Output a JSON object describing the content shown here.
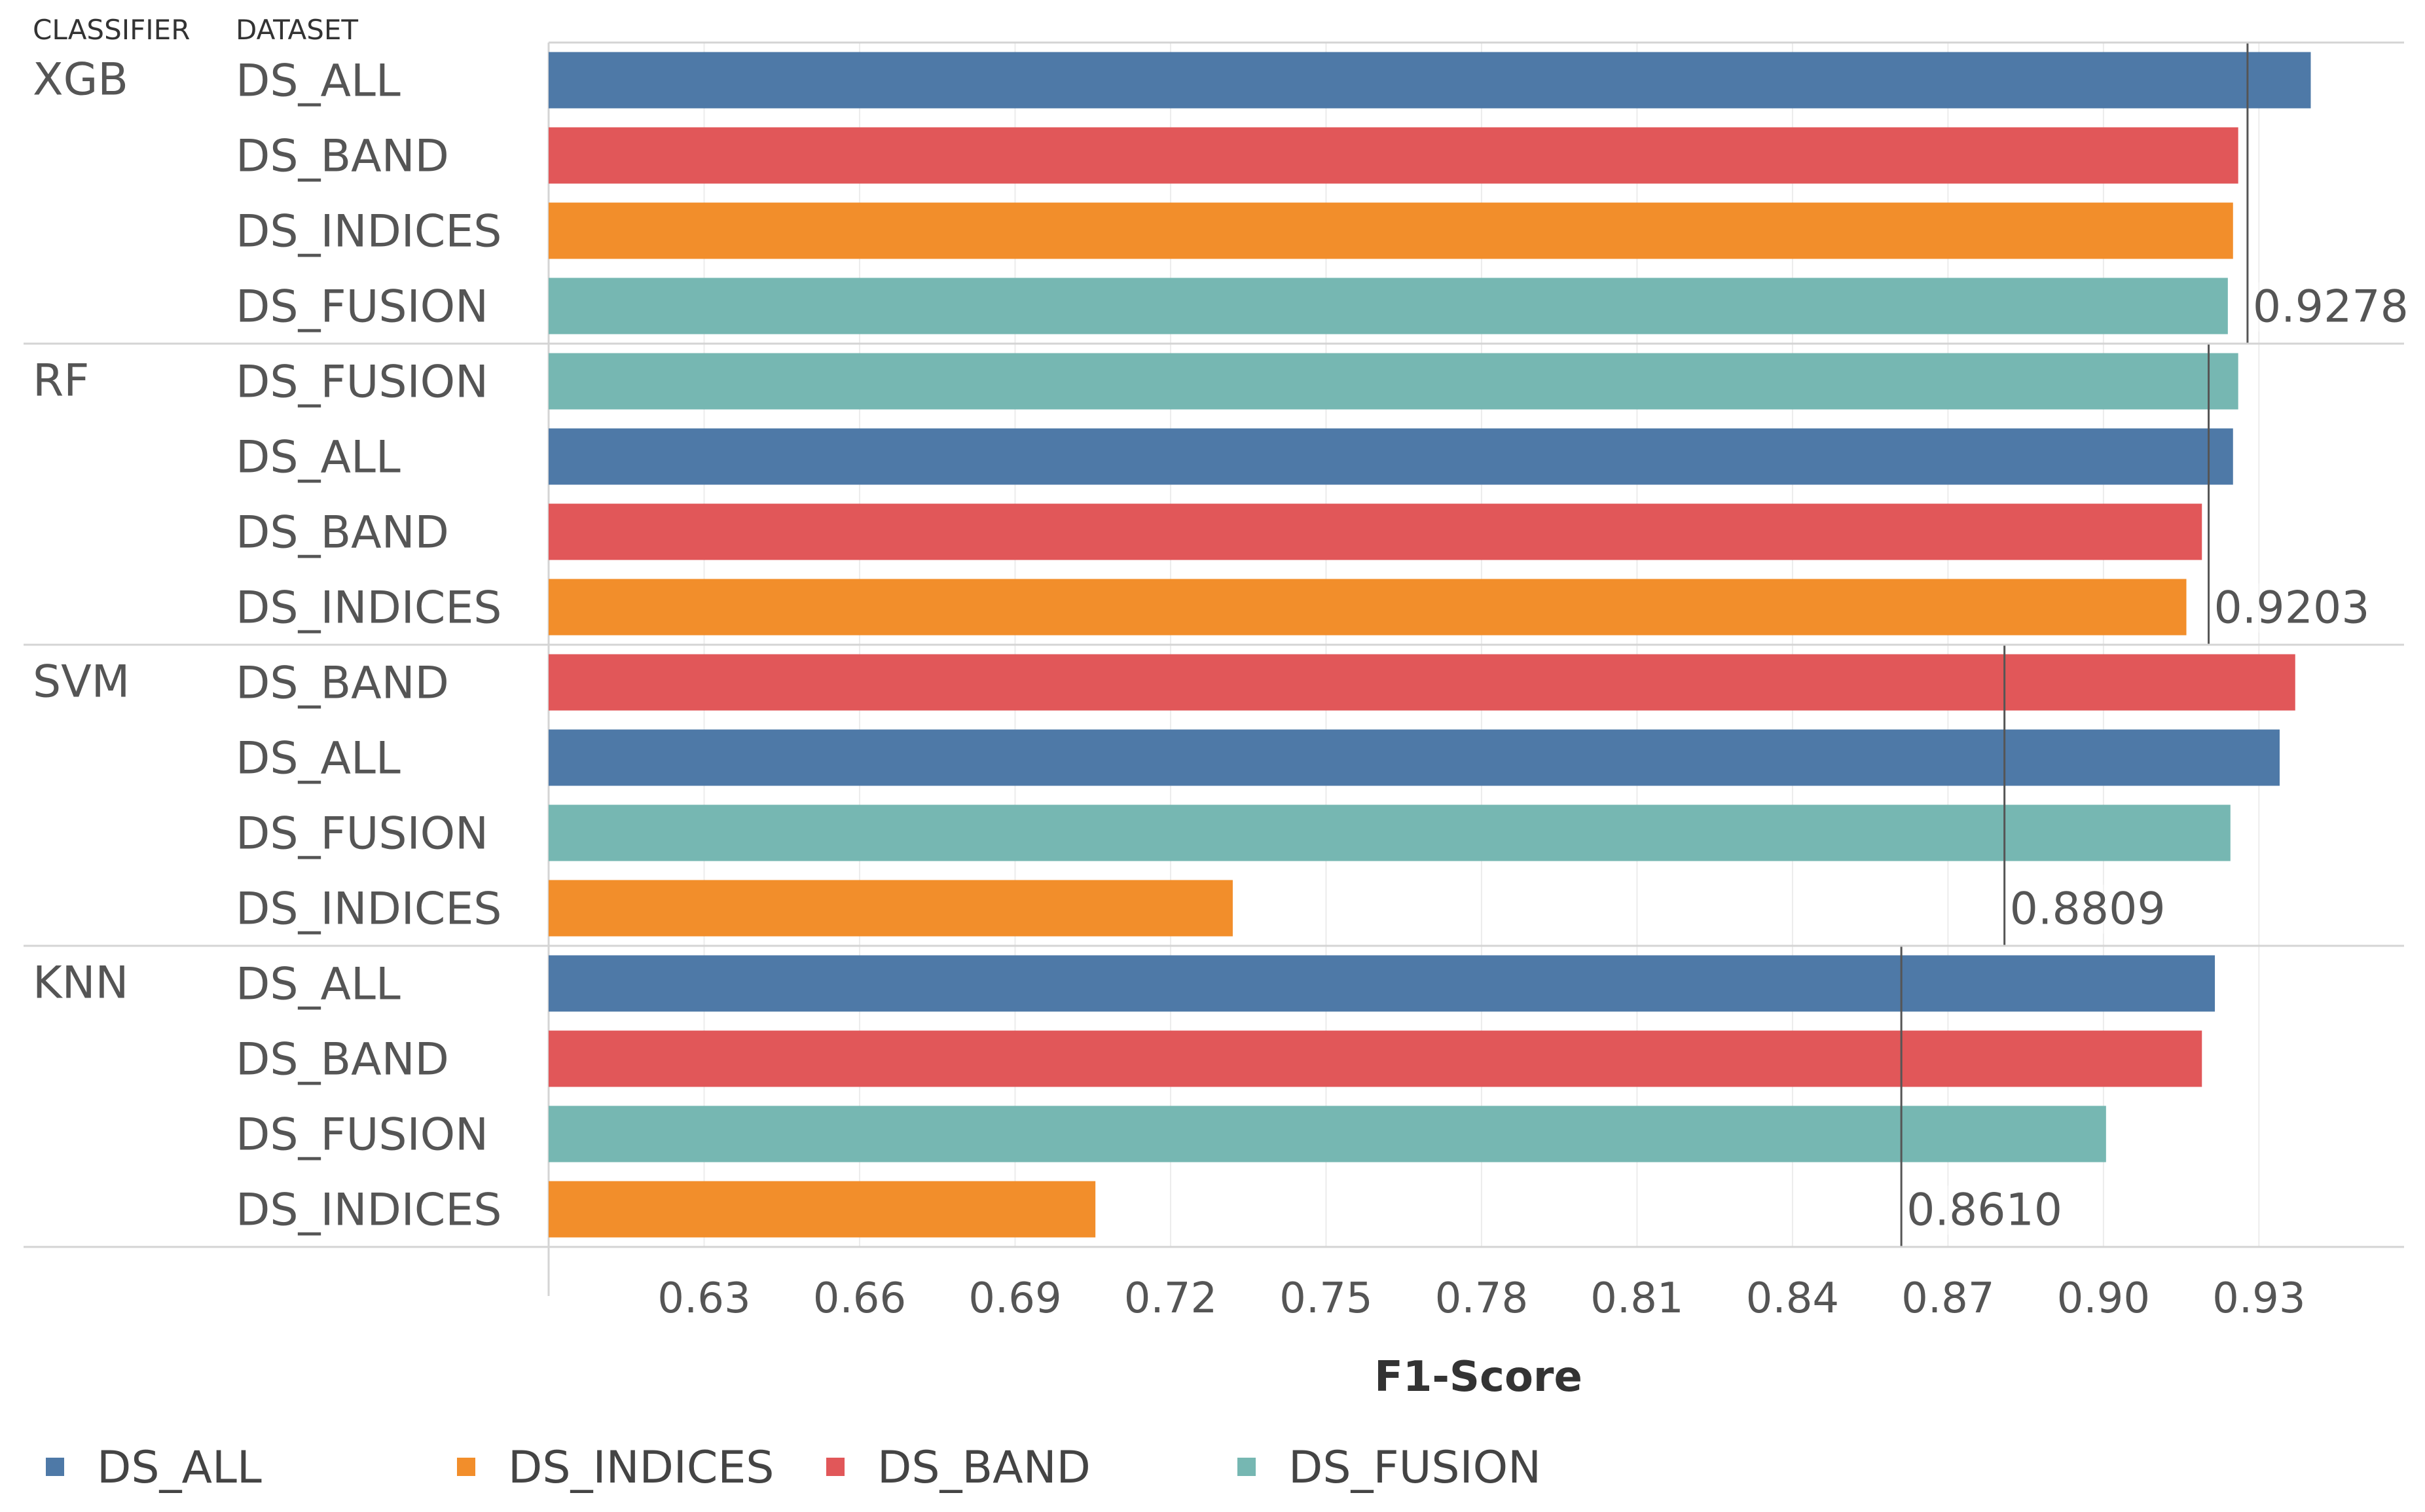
{
  "chart_data": {
    "type": "bar",
    "orientation": "horizontal",
    "xlabel": "F1-Score",
    "column_headers": {
      "classifier": "CLASSIFIER",
      "dataset": "DATASET"
    },
    "xlim": [
      0.6,
      0.958
    ],
    "ticks": [
      0.63,
      0.66,
      0.69,
      0.72,
      0.75,
      0.78,
      0.81,
      0.84,
      0.87,
      0.9,
      0.93
    ],
    "tick_labels": [
      "0.63",
      "0.66",
      "0.69",
      "0.72",
      "0.75",
      "0.78",
      "0.81",
      "0.84",
      "0.87",
      "0.90",
      "0.93"
    ],
    "series_colors": {
      "DS_ALL": "#4e79a7",
      "DS_INDICES": "#f28e2b",
      "DS_BAND": "#e15759",
      "DS_FUSION": "#76b7b2"
    },
    "legend": [
      "DS_ALL",
      "DS_INDICES",
      "DS_BAND",
      "DS_FUSION"
    ],
    "groups": [
      {
        "classifier": "XGB",
        "reference_line": 0.9278,
        "reference_label": "0.9278",
        "bars": [
          {
            "dataset": "DS_ALL",
            "value": 0.94
          },
          {
            "dataset": "DS_BAND",
            "value": 0.926
          },
          {
            "dataset": "DS_INDICES",
            "value": 0.925
          },
          {
            "dataset": "DS_FUSION",
            "value": 0.924
          }
        ]
      },
      {
        "classifier": "RF",
        "reference_line": 0.9203,
        "reference_label": "0.9203",
        "bars": [
          {
            "dataset": "DS_FUSION",
            "value": 0.926
          },
          {
            "dataset": "DS_ALL",
            "value": 0.925
          },
          {
            "dataset": "DS_BAND",
            "value": 0.919
          },
          {
            "dataset": "DS_INDICES",
            "value": 0.916
          }
        ]
      },
      {
        "classifier": "SVM",
        "reference_line": 0.8809,
        "reference_label": "0.8809",
        "bars": [
          {
            "dataset": "DS_BAND",
            "value": 0.937
          },
          {
            "dataset": "DS_ALL",
            "value": 0.934
          },
          {
            "dataset": "DS_FUSION",
            "value": 0.9245
          },
          {
            "dataset": "DS_INDICES",
            "value": 0.732
          }
        ]
      },
      {
        "classifier": "KNN",
        "reference_line": 0.861,
        "reference_label": "0.8610",
        "bars": [
          {
            "dataset": "DS_ALL",
            "value": 0.9215
          },
          {
            "dataset": "DS_BAND",
            "value": 0.919
          },
          {
            "dataset": "DS_FUSION",
            "value": 0.9005
          },
          {
            "dataset": "DS_INDICES",
            "value": 0.7055
          }
        ]
      }
    ]
  }
}
